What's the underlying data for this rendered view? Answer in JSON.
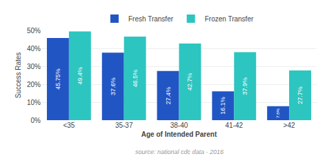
{
  "chart_data": {
    "type": "bar",
    "categories": [
      "<35",
      "35-37",
      "38-40",
      "41-42",
      ">42"
    ],
    "series": [
      {
        "name": "Fresh Transfer",
        "color": "#2255c4",
        "values": [
          45.75,
          37.6,
          27.4,
          16.1,
          7.8
        ],
        "value_labels": [
          "45.75%",
          "37.6%",
          "27.4%",
          "16.1%",
          "7.8%"
        ]
      },
      {
        "name": "Frozen Transfer",
        "color": "#2dc5c0",
        "values": [
          49.4,
          46.5,
          42.7,
          37.9,
          27.7
        ],
        "value_labels": [
          "49.4%",
          "46.5%",
          "42.7%",
          "37.9%",
          "27.7%"
        ]
      }
    ],
    "xlabel": "Age of Intended Parent",
    "ylabel": "Success Rates",
    "annotations": [
      "source: national cdc data - 2016"
    ],
    "ylim": [
      0,
      50
    ],
    "yticks": [
      {
        "value": 0,
        "label": "0%"
      },
      {
        "value": 10,
        "label": "10%"
      },
      {
        "value": 20,
        "label": "20%"
      },
      {
        "value": 30,
        "label": "30%"
      },
      {
        "value": 40,
        "label": "40%"
      },
      {
        "value": 50,
        "label": "50%"
      }
    ],
    "grid": true,
    "legend": "top",
    "data_labels": true
  }
}
